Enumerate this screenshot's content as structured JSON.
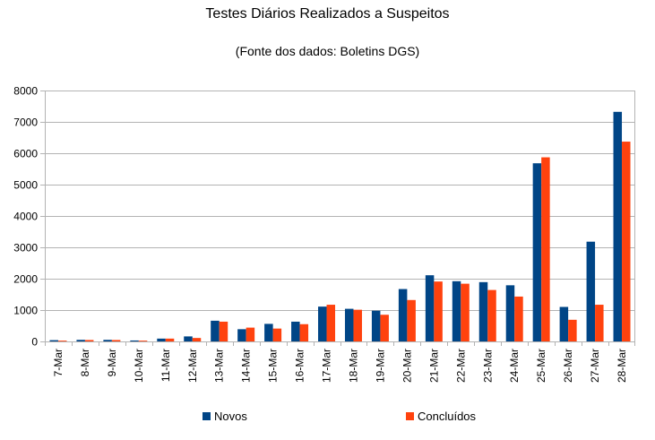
{
  "chart_data": {
    "type": "bar",
    "title": "Testes Diários Realizados a Suspeitos",
    "subtitle": "(Fonte dos dados: Boletins DGS)",
    "xlabel": "",
    "ylabel": "",
    "ylim": [
      0,
      8000
    ],
    "yticks": [
      0,
      1000,
      2000,
      3000,
      4000,
      5000,
      6000,
      7000,
      8000
    ],
    "grid": true,
    "legend_position": "bottom",
    "categories": [
      "7-Mar",
      "8-Mar",
      "9-Mar",
      "10-Mar",
      "11-Mar",
      "12-Mar",
      "13-Mar",
      "14-Mar",
      "15-Mar",
      "16-Mar",
      "17-Mar",
      "18-Mar",
      "19-Mar",
      "20-Mar",
      "21-Mar",
      "22-Mar",
      "23-Mar",
      "24-Mar",
      "25-Mar",
      "26-Mar",
      "27-Mar",
      "28-Mar"
    ],
    "series": [
      {
        "name": "Novos",
        "color": "#004586",
        "values": [
          40,
          50,
          50,
          30,
          90,
          160,
          660,
          390,
          560,
          630,
          1110,
          1040,
          980,
          1670,
          2110,
          1920,
          1890,
          1790,
          5680,
          1100,
          3180,
          7320
        ]
      },
      {
        "name": "Concluídos",
        "color": "#ff420e",
        "values": [
          25,
          45,
          45,
          25,
          90,
          110,
          630,
          440,
          410,
          550,
          1170,
          1010,
          850,
          1320,
          1910,
          1840,
          1640,
          1430,
          5870,
          690,
          1170,
          6370
        ]
      }
    ]
  }
}
